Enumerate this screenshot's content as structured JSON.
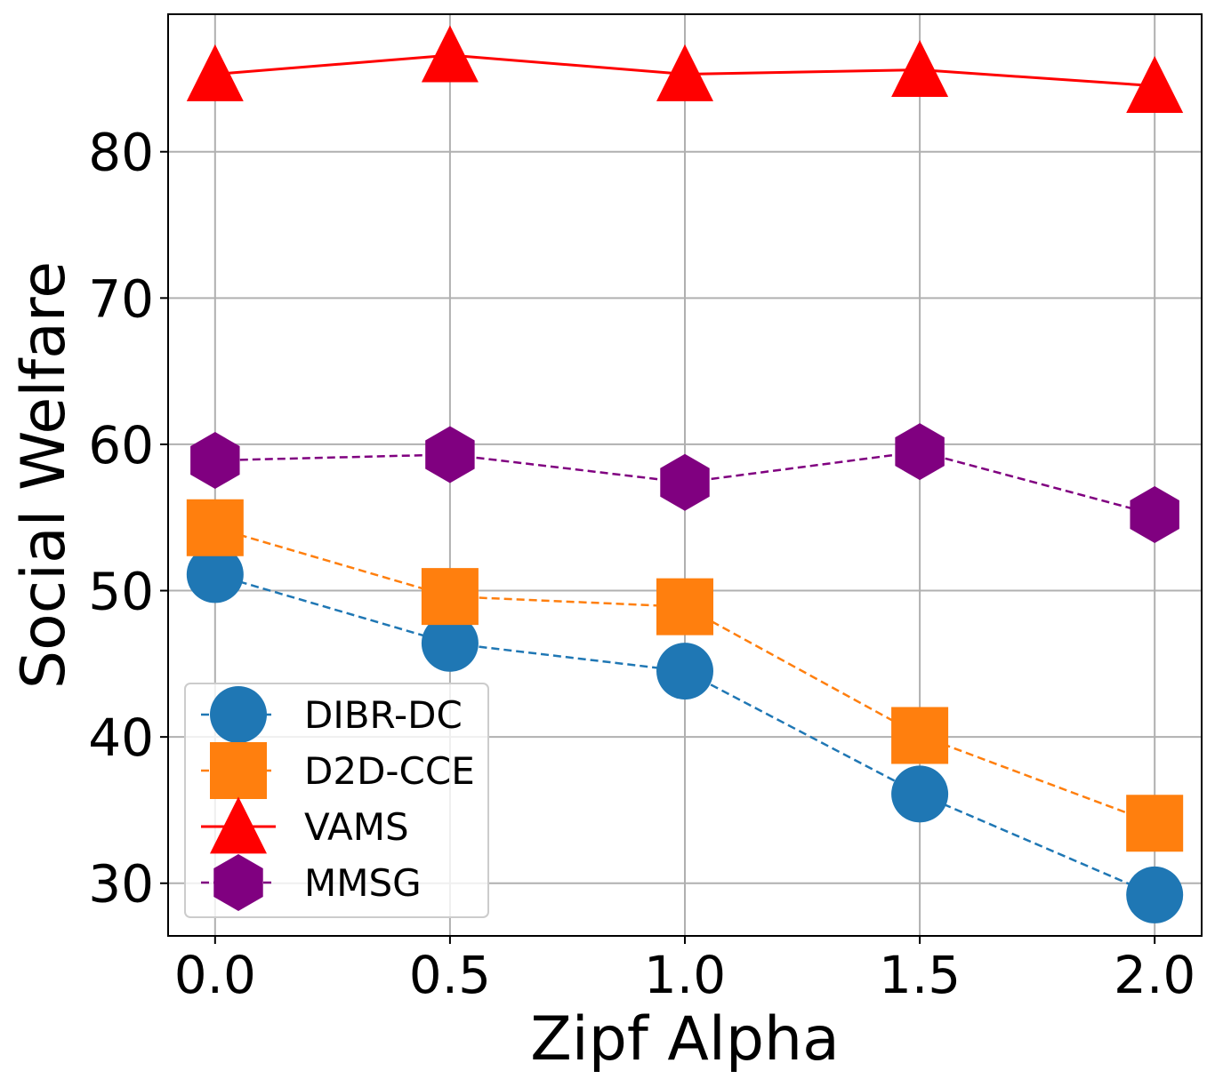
{
  "chart_data": {
    "type": "line",
    "title": "",
    "xlabel": "Zipf Alpha",
    "ylabel": "Social Welfare",
    "x": [
      0.0,
      0.5,
      1.0,
      1.5,
      2.0
    ],
    "x_tick_labels": [
      "0.0",
      "0.5",
      "1.0",
      "1.5",
      "2.0"
    ],
    "xlim": [
      -0.1,
      2.1
    ],
    "ylim": [
      26.4,
      89.4
    ],
    "y_ticks": [
      30,
      40,
      50,
      60,
      70,
      80
    ],
    "y_tick_labels": [
      "30",
      "40",
      "50",
      "60",
      "70",
      "80"
    ],
    "grid": true,
    "legend_position": "lower-left",
    "series": [
      {
        "name": "DIBR-DC",
        "values": [
          51.1,
          46.4,
          44.5,
          36.1,
          29.2
        ],
        "color": "#1f77b4",
        "marker": "circle",
        "line_style": "dashed"
      },
      {
        "name": "D2D-CCE",
        "values": [
          54.3,
          49.6,
          48.9,
          40.1,
          34.1
        ],
        "color": "#ff7f0e",
        "marker": "square",
        "line_style": "dashed"
      },
      {
        "name": "VAMS",
        "values": [
          85.3,
          86.6,
          85.3,
          85.6,
          84.5
        ],
        "color": "#ff0000",
        "marker": "triangle",
        "line_style": "solid"
      },
      {
        "name": "MMSG",
        "values": [
          58.9,
          59.3,
          57.4,
          59.5,
          55.2
        ],
        "color": "#800080",
        "marker": "hexagon",
        "line_style": "dashed"
      }
    ]
  }
}
